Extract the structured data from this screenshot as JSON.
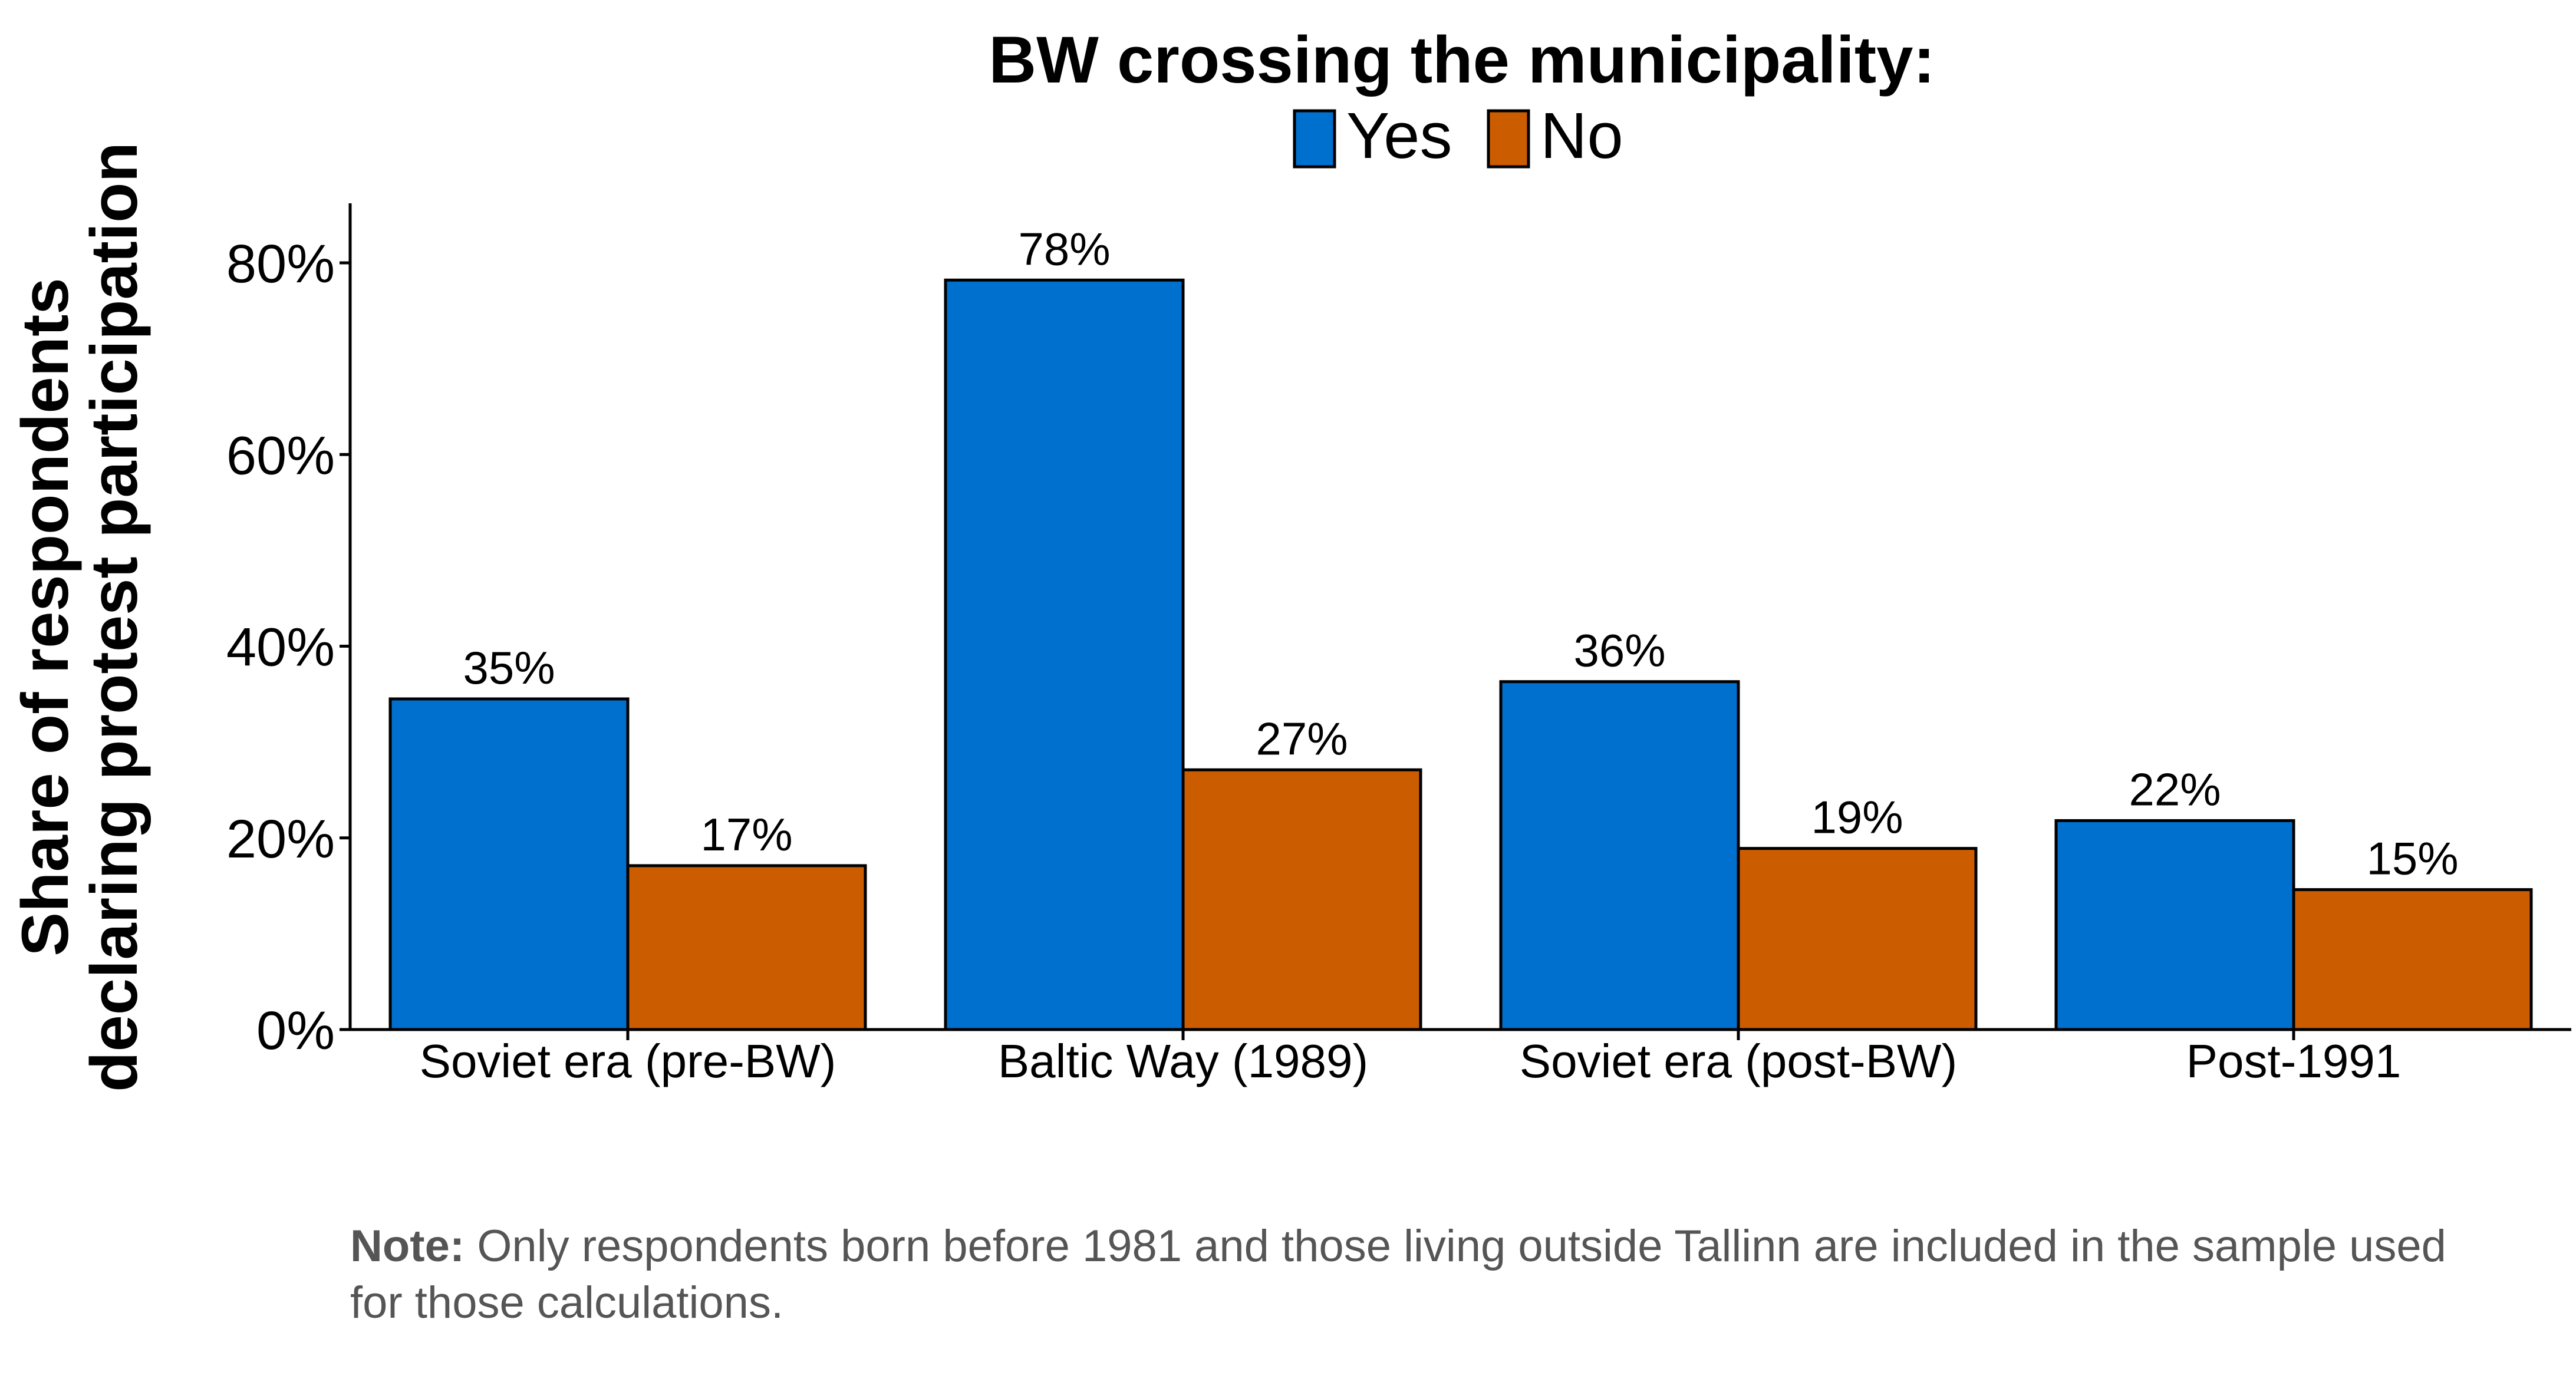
{
  "chart_data": {
    "type": "bar",
    "legend": {
      "title": "BW crossing the municipality:",
      "placement": "top-center"
    },
    "ylabel_lines": [
      "Share of respondents",
      "declaring protest participation"
    ],
    "xlabel": "",
    "categories": [
      "Soviet era (pre-BW)",
      "Baltic Way (1989)",
      "Soviet era (post-BW)",
      "Post-1991"
    ],
    "series": [
      {
        "name": "Yes",
        "color": "#0070CE",
        "values": [
          34.5,
          78.2,
          36.3,
          21.8
        ],
        "labels": [
          "35%",
          "78%",
          "36%",
          "22%"
        ]
      },
      {
        "name": "No",
        "color": "#CC5C00",
        "values": [
          17.1,
          27.1,
          18.9,
          14.6
        ],
        "labels": [
          "17%",
          "27%",
          "19%",
          "15%"
        ]
      }
    ],
    "ylim": [
      0,
      86
    ],
    "yticks": [
      0,
      20,
      40,
      60,
      80
    ],
    "ytick_labels": [
      "0%",
      "20%",
      "40%",
      "60%",
      "80%"
    ],
    "grid": false
  },
  "note": {
    "bold": "Note:",
    "line1": " Only respondents born before 1981 and those living outside Tallinn are included in the sample used",
    "line2": "for those calculations."
  }
}
